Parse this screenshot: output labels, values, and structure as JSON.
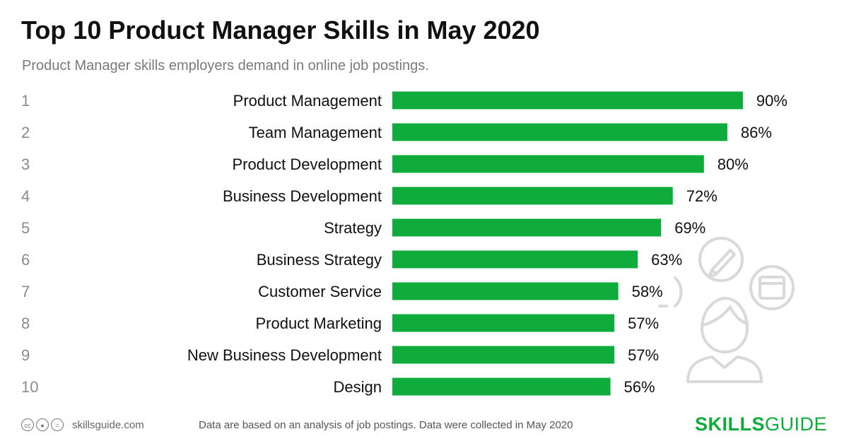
{
  "header": {
    "title": "Top 10 Product Manager Skills in May 2020",
    "subtitle": "Product Manager skills employers demand in online job postings."
  },
  "chart_data": {
    "type": "bar",
    "orientation": "horizontal",
    "ranks": [
      "1",
      "2",
      "3",
      "4",
      "5",
      "6",
      "7",
      "8",
      "9",
      "10"
    ],
    "categories": [
      "Product Management",
      "Team Management",
      "Product Development",
      "Business Development",
      "Strategy",
      "Business Strategy",
      "Customer Service",
      "Product Marketing",
      "New Business Development",
      "Design"
    ],
    "values": [
      90,
      86,
      80,
      72,
      69,
      63,
      58,
      57,
      57,
      56
    ],
    "value_labels": [
      "90%",
      "86%",
      "80%",
      "72%",
      "69%",
      "63%",
      "58%",
      "57%",
      "57%",
      "56%"
    ],
    "xlim": [
      0,
      100
    ],
    "bar_color": "#0fac3c",
    "grid": false,
    "legend": "none"
  },
  "footer": {
    "cc_icons": [
      "cc-icon",
      "by-icon",
      "nd-icon"
    ],
    "site": "skillsguide.com",
    "note": "Data are based on an analysis of job postings. Data were collected in May 2020",
    "brand_bold": "SKILLS",
    "brand_light": "GUIDE"
  },
  "decoration": {
    "icons": [
      "person-icon",
      "pencil-icon",
      "browser-window-icon",
      "circle-icon"
    ],
    "color": "#d9d9d9"
  }
}
